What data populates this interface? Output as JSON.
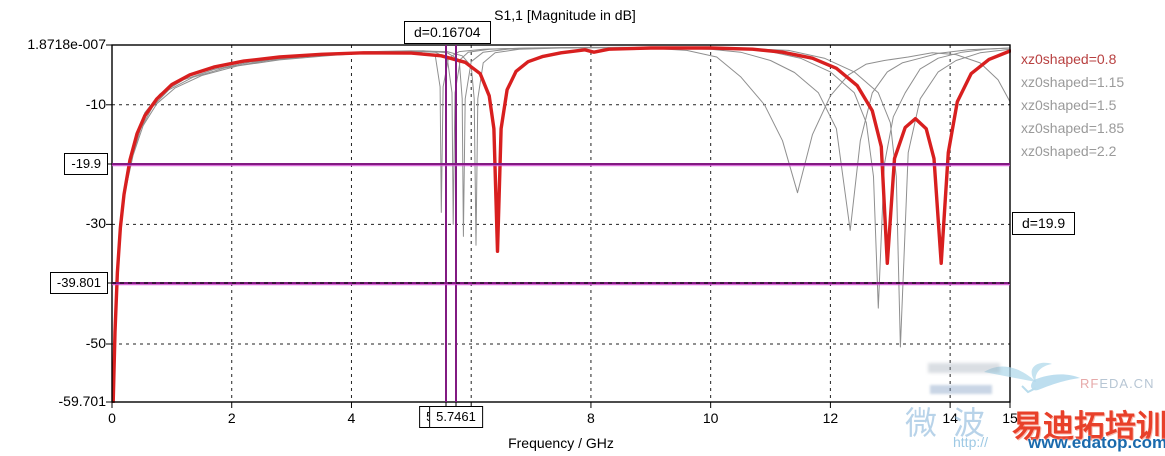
{
  "title": "S1,1 [Magnitude in dB]",
  "annotations": {
    "delta_x": "d=0.16704",
    "delta_y": "d=19.9"
  },
  "colors": {
    "curve_red": "#d81f1f",
    "curve_gray": "#8f8f8f",
    "marker_purple": "#821a82",
    "marker_magenta": "#d24ad2",
    "grid_black": "#222222",
    "frame_black": "#000000",
    "legend_red": "#b84040",
    "legend_gray": "#9a9a9a"
  },
  "chart_data": {
    "type": "line",
    "title": "S1,1 [Magnitude in dB]",
    "xlabel": "Frequency / GHz",
    "ylabel": "",
    "xlim": [
      0,
      15
    ],
    "ylim": [
      -59.701,
      0
    ],
    "grid": true,
    "legend_position": "right-outside",
    "x_ticks": [
      {
        "v": 0,
        "label": "0"
      },
      {
        "v": 2,
        "label": "2",
        "grid": true
      },
      {
        "v": 4,
        "label": "4",
        "grid": true
      },
      {
        "v": 5.5791,
        "label": "5.5791",
        "boxed": true,
        "marker": true
      },
      {
        "v": 5.7461,
        "label": "5.7461",
        "boxed": true,
        "marker": true
      },
      {
        "v": 6,
        "label": "",
        "grid": true
      },
      {
        "v": 8,
        "label": "8",
        "grid": true
      },
      {
        "v": 10,
        "label": "10",
        "grid": true
      },
      {
        "v": 12,
        "label": "12",
        "grid": true
      },
      {
        "v": 14,
        "label": "14",
        "grid": true
      },
      {
        "v": 15,
        "label": "15"
      }
    ],
    "y_ticks": [
      {
        "v": 0,
        "label": "1.8718e-007"
      },
      {
        "v": -10,
        "label": "-10",
        "grid": true
      },
      {
        "v": -19.9,
        "label": "-19.9",
        "boxed": true,
        "marker": true
      },
      {
        "v": -30,
        "label": "-30",
        "grid": true
      },
      {
        "v": -39.801,
        "label": "-39.801",
        "boxed": true,
        "marker": true,
        "dash_overlay": true
      },
      {
        "v": -50,
        "label": "-50",
        "grid": true
      },
      {
        "v": -59.701,
        "label": "-59.701"
      }
    ],
    "series": [
      {
        "name": "xz0shaped=0.8",
        "color": "#d81f1f",
        "legend_color": "#b84040",
        "width": 3.4,
        "points": [
          [
            0.02,
            -59.701
          ],
          [
            0.05,
            -48
          ],
          [
            0.09,
            -38
          ],
          [
            0.14,
            -30.5
          ],
          [
            0.2,
            -25
          ],
          [
            0.3,
            -19.2
          ],
          [
            0.42,
            -14.8
          ],
          [
            0.55,
            -11.8
          ],
          [
            0.75,
            -9
          ],
          [
            1,
            -6.6
          ],
          [
            1.3,
            -5
          ],
          [
            1.7,
            -3.7
          ],
          [
            2.2,
            -2.7
          ],
          [
            2.8,
            -2
          ],
          [
            3.5,
            -1.55
          ],
          [
            4.2,
            -1.3
          ],
          [
            5,
            -1.35
          ],
          [
            5.5,
            -1.8
          ],
          [
            5.9,
            -2.9
          ],
          [
            6.15,
            -4.8
          ],
          [
            6.3,
            -8.5
          ],
          [
            6.38,
            -14
          ],
          [
            6.44,
            -34.5
          ],
          [
            6.5,
            -14
          ],
          [
            6.6,
            -7.5
          ],
          [
            6.75,
            -4.4
          ],
          [
            6.95,
            -2.8
          ],
          [
            7.2,
            -1.9
          ],
          [
            7.5,
            -1.3
          ],
          [
            7.9,
            -0.8
          ],
          [
            8.05,
            -1.2
          ],
          [
            8.3,
            -0.7
          ],
          [
            9,
            -0.5
          ],
          [
            10,
            -0.5
          ],
          [
            10.7,
            -0.7
          ],
          [
            11.2,
            -1.2
          ],
          [
            11.7,
            -2.2
          ],
          [
            12.1,
            -3.9
          ],
          [
            12.45,
            -6.8
          ],
          [
            12.7,
            -11
          ],
          [
            12.85,
            -17
          ],
          [
            12.95,
            -36.5
          ],
          [
            13.07,
            -19
          ],
          [
            13.25,
            -13.8
          ],
          [
            13.42,
            -12.3
          ],
          [
            13.6,
            -14
          ],
          [
            13.73,
            -19
          ],
          [
            13.85,
            -36.5
          ],
          [
            13.97,
            -18
          ],
          [
            14.12,
            -9.5
          ],
          [
            14.35,
            -4.8
          ],
          [
            14.65,
            -2.4
          ],
          [
            15,
            -1
          ]
        ]
      },
      {
        "name": "xz0shaped=1.15",
        "color": "#8f8f8f",
        "legend_color": "#9a9a9a",
        "width": 1,
        "points": [
          [
            0.02,
            -59.5
          ],
          [
            0.06,
            -44
          ],
          [
            0.1,
            -35
          ],
          [
            0.16,
            -28
          ],
          [
            0.25,
            -21.5
          ],
          [
            0.38,
            -15.8
          ],
          [
            0.55,
            -11.3
          ],
          [
            0.8,
            -8.2
          ],
          [
            1.1,
            -6
          ],
          [
            1.5,
            -4.4
          ],
          [
            2,
            -3.2
          ],
          [
            2.7,
            -2.2
          ],
          [
            3.5,
            -1.5
          ],
          [
            4.3,
            -1.1
          ],
          [
            5,
            -0.95
          ],
          [
            5.6,
            -1.1
          ],
          [
            5.85,
            -1.8
          ],
          [
            6,
            -3.5
          ],
          [
            6.05,
            -9
          ],
          [
            6.08,
            -33.5
          ],
          [
            6.11,
            -9
          ],
          [
            6.2,
            -3
          ],
          [
            6.4,
            -1.3
          ],
          [
            6.8,
            -0.7
          ],
          [
            7.5,
            -0.5
          ],
          [
            8.5,
            -0.4
          ],
          [
            9.5,
            -0.4
          ],
          [
            10.5,
            -0.55
          ],
          [
            11.3,
            -0.9
          ],
          [
            11.9,
            -2.2
          ],
          [
            12.4,
            -4.5
          ],
          [
            12.8,
            -8
          ],
          [
            13,
            -13
          ],
          [
            13.1,
            -22
          ],
          [
            13.17,
            -50.5
          ],
          [
            13.3,
            -18
          ],
          [
            13.5,
            -9
          ],
          [
            13.8,
            -4.5
          ],
          [
            14.1,
            -2.6
          ],
          [
            14.5,
            -1.3
          ],
          [
            15,
            -0.7
          ]
        ]
      },
      {
        "name": "xz0shaped=1.5",
        "color": "#8f8f8f",
        "legend_color": "#9a9a9a",
        "width": 1,
        "points": [
          [
            0.02,
            -59
          ],
          [
            0.06,
            -43
          ],
          [
            0.11,
            -34
          ],
          [
            0.18,
            -26.5
          ],
          [
            0.28,
            -20.5
          ],
          [
            0.42,
            -15
          ],
          [
            0.6,
            -10.9
          ],
          [
            0.85,
            -7.9
          ],
          [
            1.2,
            -5.8
          ],
          [
            1.7,
            -4.1
          ],
          [
            2.3,
            -2.9
          ],
          [
            3,
            -2.1
          ],
          [
            3.8,
            -1.5
          ],
          [
            4.6,
            -1.1
          ],
          [
            5.2,
            -0.95
          ],
          [
            5.6,
            -1.3
          ],
          [
            5.8,
            -2.5
          ],
          [
            5.85,
            -9
          ],
          [
            5.87,
            -32
          ],
          [
            5.9,
            -9
          ],
          [
            6,
            -2.8
          ],
          [
            6.2,
            -1.2
          ],
          [
            6.6,
            -0.7
          ],
          [
            7.5,
            -0.45
          ],
          [
            8.5,
            -0.4
          ],
          [
            9.8,
            -0.5
          ],
          [
            10.9,
            -0.9
          ],
          [
            11.5,
            -2.2
          ],
          [
            12,
            -4.5
          ],
          [
            12.4,
            -8
          ],
          [
            12.6,
            -13
          ],
          [
            12.72,
            -22
          ],
          [
            12.8,
            -44
          ],
          [
            12.9,
            -20
          ],
          [
            13.05,
            -12
          ],
          [
            13.25,
            -8
          ],
          [
            13.5,
            -4
          ],
          [
            13.8,
            -2.2
          ],
          [
            14.2,
            -1.2
          ],
          [
            14.6,
            -0.7
          ],
          [
            15,
            -0.5
          ]
        ]
      },
      {
        "name": "xz0shaped=1.85",
        "color": "#8f8f8f",
        "legend_color": "#9a9a9a",
        "width": 1,
        "points": [
          [
            0.02,
            -58.5
          ],
          [
            0.07,
            -42
          ],
          [
            0.12,
            -33
          ],
          [
            0.2,
            -25.5
          ],
          [
            0.32,
            -19.3
          ],
          [
            0.48,
            -14
          ],
          [
            0.68,
            -10.3
          ],
          [
            0.95,
            -7.5
          ],
          [
            1.35,
            -5.4
          ],
          [
            1.9,
            -3.8
          ],
          [
            2.6,
            -2.6
          ],
          [
            3.4,
            -1.8
          ],
          [
            4.2,
            -1.3
          ],
          [
            5,
            -1
          ],
          [
            5.4,
            -1.2
          ],
          [
            5.6,
            -2.2
          ],
          [
            5.68,
            -8
          ],
          [
            5.7,
            -30
          ],
          [
            5.73,
            -8
          ],
          [
            5.82,
            -2.4
          ],
          [
            5.95,
            -1.2
          ],
          [
            6.3,
            -0.7
          ],
          [
            7,
            -0.5
          ],
          [
            8,
            -0.4
          ],
          [
            9,
            -0.45
          ],
          [
            10,
            -0.7
          ],
          [
            10.5,
            -1.2
          ],
          [
            11,
            -2.6
          ],
          [
            11.4,
            -4.6
          ],
          [
            11.8,
            -8
          ],
          [
            12.1,
            -14
          ],
          [
            12.33,
            -31
          ],
          [
            12.5,
            -16
          ],
          [
            12.7,
            -8
          ],
          [
            12.95,
            -4.5
          ],
          [
            13.2,
            -3
          ],
          [
            13.5,
            -2.2
          ],
          [
            13.8,
            -1.4
          ],
          [
            14.3,
            -0.8
          ],
          [
            15,
            -0.5
          ]
        ]
      },
      {
        "name": "xz0shaped=2.2",
        "color": "#8f8f8f",
        "legend_color": "#9a9a9a",
        "width": 1,
        "points": [
          [
            0.02,
            -58
          ],
          [
            0.07,
            -41
          ],
          [
            0.13,
            -32
          ],
          [
            0.22,
            -24.5
          ],
          [
            0.35,
            -18.5
          ],
          [
            0.52,
            -13.5
          ],
          [
            0.75,
            -9.8
          ],
          [
            1.05,
            -7.2
          ],
          [
            1.5,
            -5.1
          ],
          [
            2.1,
            -3.5
          ],
          [
            2.8,
            -2.5
          ],
          [
            3.7,
            -1.7
          ],
          [
            4.5,
            -1.2
          ],
          [
            5.1,
            -1.1
          ],
          [
            5.4,
            -1.8
          ],
          [
            5.48,
            -7
          ],
          [
            5.5,
            -28
          ],
          [
            5.53,
            -7
          ],
          [
            5.62,
            -2.2
          ],
          [
            5.8,
            -1.1
          ],
          [
            6.2,
            -0.7
          ],
          [
            7,
            -0.5
          ],
          [
            8,
            -0.45
          ],
          [
            9,
            -0.55
          ],
          [
            9.6,
            -0.9
          ],
          [
            10.1,
            -2
          ],
          [
            10.5,
            -5.3
          ],
          [
            10.9,
            -10
          ],
          [
            11.2,
            -16
          ],
          [
            11.45,
            -24.7
          ],
          [
            11.7,
            -15
          ],
          [
            12,
            -8.5
          ],
          [
            12.3,
            -5
          ],
          [
            12.6,
            -3.2
          ],
          [
            12.9,
            -2.6
          ],
          [
            13.3,
            -2
          ],
          [
            13.7,
            -1.3
          ],
          [
            14.1,
            -1.6
          ],
          [
            14.5,
            -3
          ],
          [
            14.8,
            -5.8
          ],
          [
            15,
            -9.5
          ]
        ]
      }
    ]
  },
  "watermark": {
    "logo_rf": "RF",
    "logo_rest": "EDA.CN",
    "faint_cn": "微波",
    "protocol": "http://",
    "brand_cn": "易迪拓培训",
    "site": "www.edatop.com"
  }
}
